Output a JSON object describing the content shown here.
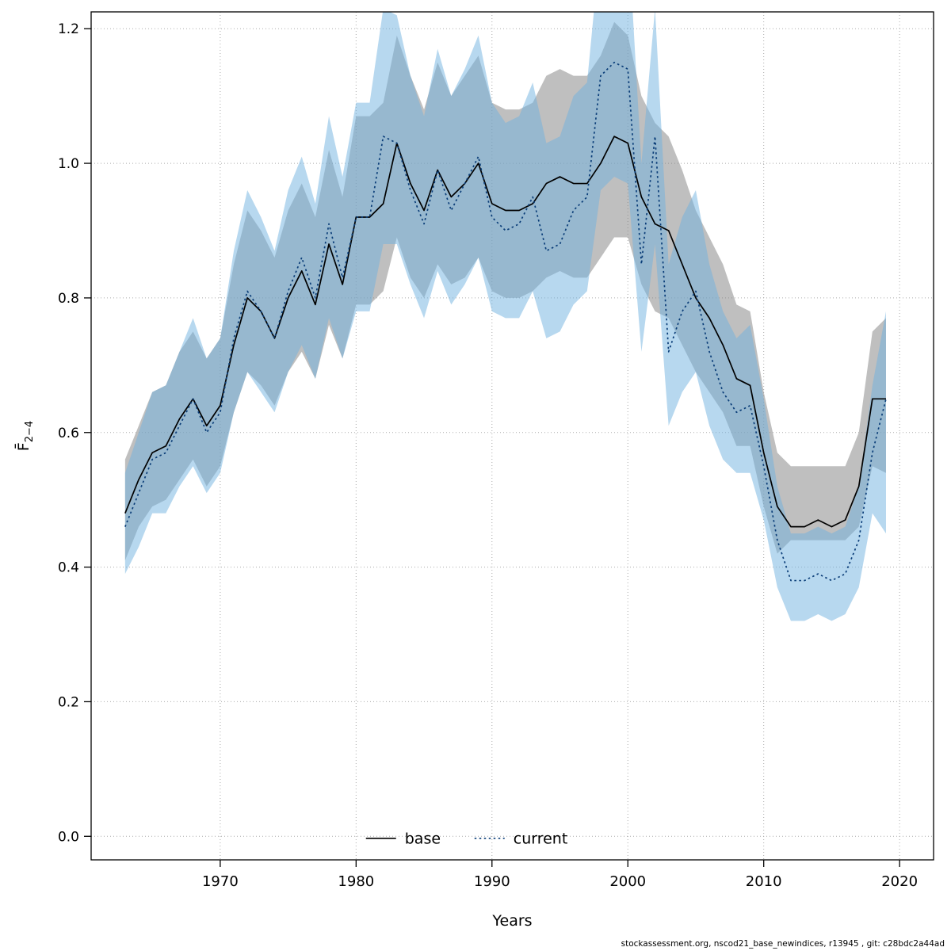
{
  "footer": "stockassessment.org, nscod21_base_newindices, r13945 , git: c28bdc2a44ad",
  "chart_data": {
    "type": "line",
    "title": "",
    "xlabel": "Years",
    "ylabel_main": "F̄",
    "ylabel_sub": "2−4",
    "grid": true,
    "legend_position": "bottom-center-inside",
    "xlim": [
      1960.5,
      2022.5
    ],
    "ylim": [
      -0.035,
      1.225
    ],
    "x_ticks": [
      1970,
      1980,
      1990,
      2000,
      2010,
      2020
    ],
    "x_tick_labels": [
      "1970",
      "1980",
      "1990",
      "2000",
      "2010",
      "2020"
    ],
    "y_ticks": [
      0.0,
      0.2,
      0.4,
      0.6,
      0.8,
      1.0,
      1.2
    ],
    "y_tick_labels": [
      "0.0",
      "0.2",
      "0.4",
      "0.6",
      "0.8",
      "1.0",
      "1.2"
    ],
    "x": [
      1963,
      1964,
      1965,
      1966,
      1967,
      1968,
      1969,
      1970,
      1971,
      1972,
      1973,
      1974,
      1975,
      1976,
      1977,
      1978,
      1979,
      1980,
      1981,
      1982,
      1983,
      1984,
      1985,
      1986,
      1987,
      1988,
      1989,
      1990,
      1991,
      1992,
      1993,
      1994,
      1995,
      1996,
      1997,
      1998,
      1999,
      2000,
      2001,
      2002,
      2003,
      2004,
      2005,
      2006,
      2007,
      2008,
      2009,
      2010,
      2011,
      2012,
      2013,
      2014,
      2015,
      2016,
      2017,
      2018,
      2019
    ],
    "series": [
      {
        "name": "base",
        "line_color": "#000000",
        "line_style": "solid",
        "band_color": "#7f7f7f",
        "band_opacity": 0.5,
        "values": [
          0.48,
          0.53,
          0.57,
          0.58,
          0.62,
          0.65,
          0.61,
          0.64,
          0.73,
          0.8,
          0.78,
          0.74,
          0.8,
          0.84,
          0.79,
          0.88,
          0.82,
          0.92,
          0.92,
          0.94,
          1.03,
          0.97,
          0.93,
          0.99,
          0.95,
          0.97,
          1.0,
          0.94,
          0.93,
          0.93,
          0.94,
          0.97,
          0.98,
          0.97,
          0.97,
          1.0,
          1.04,
          1.03,
          0.95,
          0.91,
          0.9,
          0.85,
          0.8,
          0.77,
          0.73,
          0.68,
          0.67,
          0.57,
          0.49,
          0.46,
          0.46,
          0.47,
          0.46,
          0.47,
          0.52,
          0.65,
          0.65
        ],
        "lower": [
          0.41,
          0.46,
          0.49,
          0.5,
          0.53,
          0.56,
          0.52,
          0.55,
          0.63,
          0.69,
          0.67,
          0.64,
          0.69,
          0.72,
          0.68,
          0.76,
          0.71,
          0.79,
          0.79,
          0.81,
          0.89,
          0.83,
          0.8,
          0.85,
          0.82,
          0.83,
          0.86,
          0.81,
          0.8,
          0.8,
          0.81,
          0.83,
          0.84,
          0.83,
          0.83,
          0.86,
          0.89,
          0.89,
          0.82,
          0.78,
          0.77,
          0.73,
          0.69,
          0.66,
          0.63,
          0.58,
          0.58,
          0.49,
          0.42,
          0.44,
          0.44,
          0.44,
          0.44,
          0.44,
          0.46,
          0.55,
          0.54
        ],
        "upper": [
          0.56,
          0.61,
          0.66,
          0.67,
          0.72,
          0.75,
          0.71,
          0.74,
          0.85,
          0.93,
          0.9,
          0.86,
          0.93,
          0.97,
          0.92,
          1.02,
          0.95,
          1.07,
          1.07,
          1.09,
          1.19,
          1.13,
          1.08,
          1.15,
          1.1,
          1.13,
          1.16,
          1.09,
          1.08,
          1.08,
          1.09,
          1.13,
          1.14,
          1.13,
          1.13,
          1.16,
          1.21,
          1.19,
          1.1,
          1.06,
          1.04,
          0.99,
          0.93,
          0.89,
          0.85,
          0.79,
          0.78,
          0.66,
          0.57,
          0.55,
          0.55,
          0.55,
          0.55,
          0.55,
          0.6,
          0.75,
          0.77
        ]
      },
      {
        "name": "current",
        "line_color": "#0a3d78",
        "line_style": "dotted",
        "band_color": "#6fb2e0",
        "band_opacity": 0.5,
        "values": [
          0.46,
          0.51,
          0.56,
          0.57,
          0.61,
          0.65,
          0.6,
          0.63,
          0.74,
          0.81,
          0.78,
          0.74,
          0.81,
          0.86,
          0.8,
          0.91,
          0.83,
          0.92,
          0.92,
          1.04,
          1.03,
          0.96,
          0.91,
          0.99,
          0.93,
          0.97,
          1.01,
          0.92,
          0.9,
          0.91,
          0.95,
          0.87,
          0.88,
          0.93,
          0.95,
          1.13,
          1.15,
          1.14,
          0.85,
          1.04,
          0.72,
          0.78,
          0.81,
          0.72,
          0.66,
          0.63,
          0.64,
          0.55,
          0.44,
          0.38,
          0.38,
          0.39,
          0.38,
          0.39,
          0.44,
          0.57,
          0.65
        ],
        "lower": [
          0.39,
          0.43,
          0.48,
          0.48,
          0.52,
          0.55,
          0.51,
          0.54,
          0.63,
          0.69,
          0.66,
          0.63,
          0.69,
          0.73,
          0.68,
          0.77,
          0.71,
          0.78,
          0.78,
          0.88,
          0.88,
          0.82,
          0.77,
          0.84,
          0.79,
          0.82,
          0.86,
          0.78,
          0.77,
          0.77,
          0.81,
          0.74,
          0.75,
          0.79,
          0.81,
          0.96,
          0.98,
          0.97,
          0.72,
          0.88,
          0.61,
          0.66,
          0.69,
          0.61,
          0.56,
          0.54,
          0.54,
          0.47,
          0.37,
          0.32,
          0.32,
          0.33,
          0.32,
          0.33,
          0.37,
          0.48,
          0.45
        ],
        "upper": [
          0.54,
          0.6,
          0.66,
          0.67,
          0.72,
          0.77,
          0.71,
          0.74,
          0.87,
          0.96,
          0.92,
          0.87,
          0.96,
          1.01,
          0.94,
          1.07,
          0.98,
          1.09,
          1.09,
          1.23,
          1.22,
          1.13,
          1.07,
          1.17,
          1.1,
          1.14,
          1.19,
          1.09,
          1.06,
          1.07,
          1.12,
          1.03,
          1.04,
          1.1,
          1.12,
          1.33,
          1.36,
          1.35,
          1.0,
          1.23,
          0.85,
          0.92,
          0.96,
          0.85,
          0.78,
          0.74,
          0.76,
          0.65,
          0.52,
          0.45,
          0.45,
          0.46,
          0.45,
          0.46,
          0.52,
          0.67,
          0.78
        ]
      }
    ],
    "legend": [
      {
        "label": "base"
      },
      {
        "label": "current"
      }
    ],
    "colors": {
      "plot_border": "#000000",
      "grid": "#ababab",
      "background": "#ffffff"
    }
  }
}
